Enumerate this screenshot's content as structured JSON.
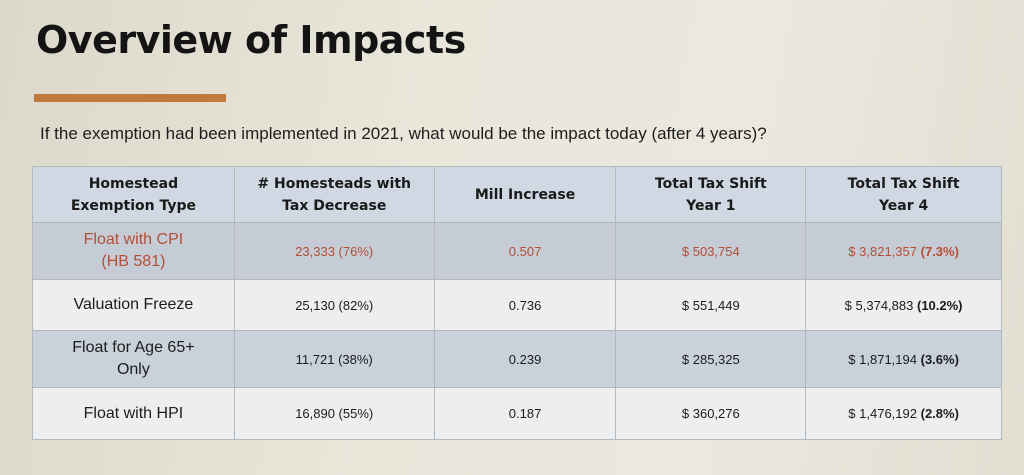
{
  "title": "Overview of Impacts",
  "subtitle": "If the exemption had been implemented in 2021, what would be the impact today (after 4 years)?",
  "colors": {
    "accent": "#c07a3c",
    "header_bg": "#cfd8e3",
    "highlight_text": "#b24f37"
  },
  "table": {
    "headers": [
      {
        "line1": "Homestead",
        "line2": "Exemption Type"
      },
      {
        "line1": "# Homesteads with",
        "line2": "Tax Decrease"
      },
      {
        "line1": "Mill Increase",
        "line2": ""
      },
      {
        "line1": "Total Tax Shift",
        "line2": "Year 1"
      },
      {
        "line1": "Total Tax Shift",
        "line2": "Year 4"
      }
    ],
    "rows": [
      {
        "type_line1": "Float with CPI",
        "type_line2": "(HB 581)",
        "homesteads": "23,333 (76%)",
        "mill": "0.507",
        "year1": "$ 503,754",
        "year4_amount": "$ 3,821,357",
        "year4_pct": "(7.3%)"
      },
      {
        "type_line1": "Valuation Freeze",
        "type_line2": "",
        "homesteads": "25,130 (82%)",
        "mill": "0.736",
        "year1": "$ 551,449",
        "year4_amount": "$ 5,374,883",
        "year4_pct": "(10.2%)"
      },
      {
        "type_line1": "Float for Age 65+",
        "type_line2": "Only",
        "homesteads": "11,721 (38%)",
        "mill": "0.239",
        "year1": "$ 285,325",
        "year4_amount": "$ 1,871,194",
        "year4_pct": "(3.6%)"
      },
      {
        "type_line1": "Float with HPI",
        "type_line2": "",
        "homesteads": "16,890 (55%)",
        "mill": "0.187",
        "year1": "$ 360,276",
        "year4_amount": "$ 1,476,192",
        "year4_pct": "(2.8%)"
      }
    ]
  }
}
